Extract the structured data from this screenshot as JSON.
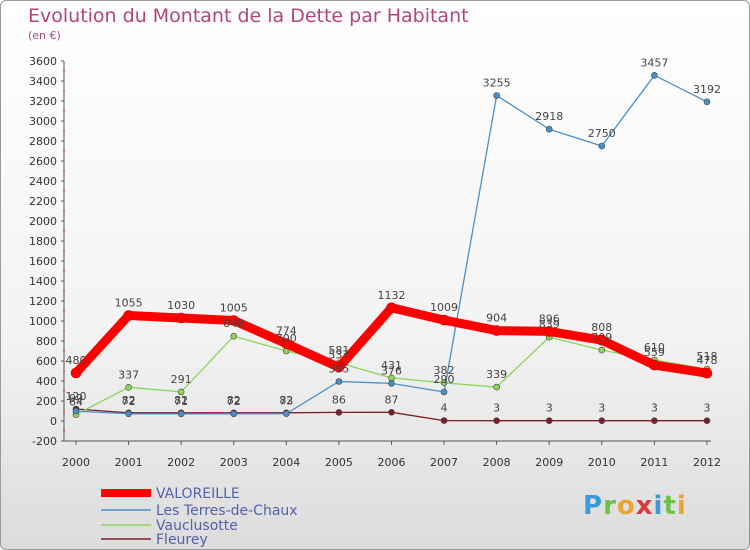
{
  "chart_data": {
    "type": "line",
    "title": "Evolution du Montant de la Dette par Habitant",
    "subtitle": "(en €)",
    "x": [
      "2000",
      "2001",
      "2002",
      "2003",
      "2004",
      "2005",
      "2006",
      "2007",
      "2008",
      "2009",
      "2010",
      "2011",
      "2012"
    ],
    "yticks": [
      -200,
      0,
      200,
      400,
      600,
      800,
      1000,
      1200,
      1400,
      1600,
      1800,
      2000,
      2200,
      2400,
      2600,
      2800,
      3000,
      3200,
      3400,
      3600
    ],
    "ylim": [
      -200,
      3600
    ],
    "grid": false,
    "legend": "bottom-left",
    "series": [
      {
        "name": "VALOREILLE",
        "color": "#ff0000",
        "values": [
          480,
          1055,
          1030,
          1005,
          774,
          537,
          1132,
          1009,
          904,
          896,
          808,
          559,
          478
        ],
        "labels": [
          "480",
          "1055",
          "1030",
          "1005",
          "774",
          "537",
          "1132",
          "1009",
          "904",
          "896",
          "808",
          "559",
          "478"
        ]
      },
      {
        "name": "Les Terres-de-Chaux",
        "color": "#4a90c8",
        "values": [
          99,
          72,
          71,
          72,
          73,
          395,
          376,
          290,
          3255,
          2918,
          2750,
          3457,
          3192
        ],
        "labels": [
          "99",
          "72",
          "71",
          "72",
          "73",
          "395",
          "376",
          "290",
          "3255",
          "2918",
          "2750",
          "3457",
          "3192"
        ]
      },
      {
        "name": "Vauclusotte",
        "color": "#8cd65a",
        "values": [
          64,
          337,
          291,
          848,
          700,
          581,
          431,
          382,
          339,
          839,
          709,
          610,
          518
        ],
        "labels": [
          "64",
          "337",
          "291",
          "848",
          "700",
          "581",
          "431",
          "382",
          "339",
          "839",
          "709",
          "610",
          "518"
        ]
      },
      {
        "name": "Fleurey",
        "color": "#7a1f2b",
        "values": [
          120,
          82,
          82,
          82,
          82,
          86,
          87,
          4,
          3,
          3,
          3,
          3,
          3
        ],
        "labels": [
          "120",
          "82",
          "82",
          "82",
          "82",
          "86",
          "87",
          "4",
          "3",
          "3",
          "3",
          "3",
          "3"
        ]
      }
    ]
  },
  "logo": {
    "letters": [
      "P",
      "r",
      "o",
      "x",
      "i",
      "t",
      "i"
    ],
    "colors": [
      "#3b9ad9",
      "#6cc24a",
      "#e9a531",
      "#d63c3c",
      "#3b9ad9",
      "#6cc24a",
      "#e9a531"
    ]
  }
}
